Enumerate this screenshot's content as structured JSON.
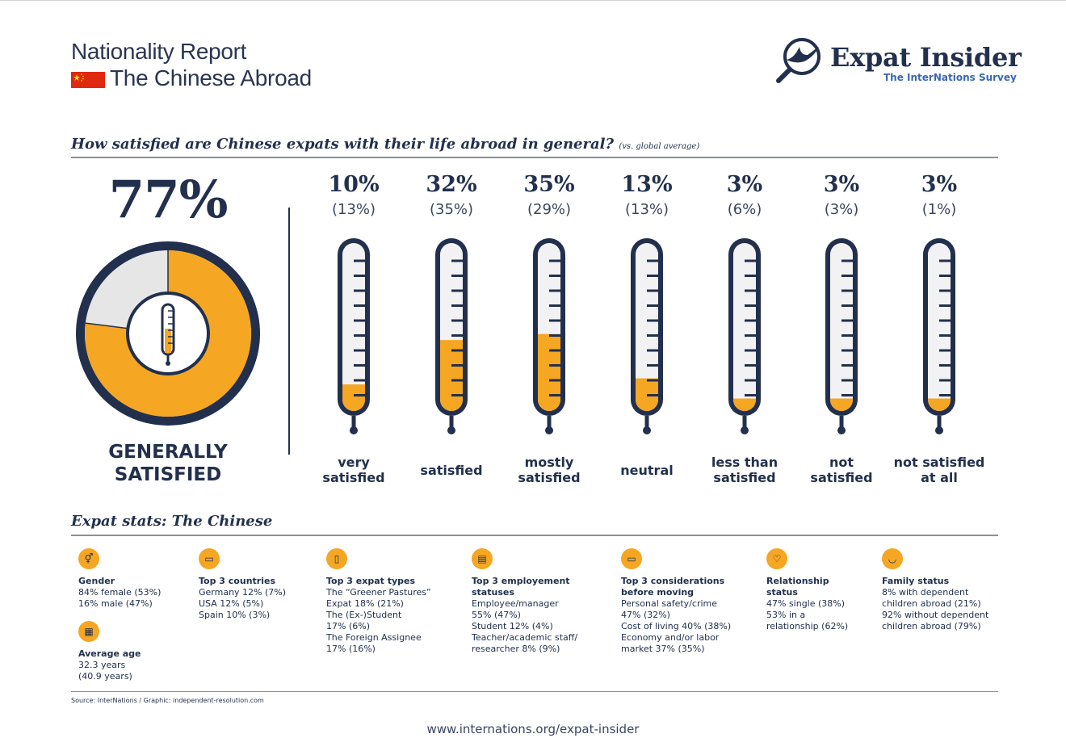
{
  "header": {
    "title_line1": "Nationality Report",
    "title_line2": "The Chinese Abroad",
    "logo_title": "Expat Insider",
    "logo_subtitle": "The InterNations Survey"
  },
  "colors": {
    "accent": "#f5a623",
    "navy": "#22304d",
    "gray": "#e6e6e6",
    "flag_red": "#de2910",
    "flag_star": "#ffde00"
  },
  "question": {
    "text": "How satisfied are Chinese expats with their life abroad in general?",
    "suffix": "(vs. global average)"
  },
  "summary": {
    "percent_label": "77%",
    "percent": 77,
    "label_line1": "GENERALLY",
    "label_line2": "SATISFIED"
  },
  "chart_data": {
    "type": "bar",
    "title": "How satisfied are Chinese expats with their life abroad in general?",
    "categories": [
      "very satisfied",
      "satisfied",
      "mostly satisfied",
      "neutral",
      "less than satisfied",
      "not satisfied",
      "not satisfied at all"
    ],
    "series": [
      {
        "name": "Chinese expats",
        "values": [
          10,
          32,
          35,
          13,
          3,
          3,
          3
        ]
      },
      {
        "name": "global average",
        "values": [
          13,
          35,
          29,
          13,
          6,
          3,
          1
        ]
      }
    ],
    "ylim": [
      0,
      100
    ],
    "items": [
      {
        "pct": "10%",
        "avg": "(13%)",
        "value": 10,
        "label1": "very",
        "label2": "satisfied"
      },
      {
        "pct": "32%",
        "avg": "(35%)",
        "value": 32,
        "label1": "satisfied",
        "label2": ""
      },
      {
        "pct": "35%",
        "avg": "(29%)",
        "value": 35,
        "label1": "mostly",
        "label2": "satisfied"
      },
      {
        "pct": "13%",
        "avg": "(13%)",
        "value": 13,
        "label1": "neutral",
        "label2": ""
      },
      {
        "pct": "3%",
        "avg": "(6%)",
        "value": 3,
        "label1": "less than",
        "label2": "satisfied"
      },
      {
        "pct": "3%",
        "avg": "(3%)",
        "value": 3,
        "label1": "not",
        "label2": "satisfied"
      },
      {
        "pct": "3%",
        "avg": "(1%)",
        "value": 3,
        "label1": "not satisfied",
        "label2": "at all"
      }
    ]
  },
  "stats": {
    "title": "Expat stats: The Chinese",
    "blocks": [
      {
        "icon": "gender-icon",
        "label": [
          "Gender"
        ],
        "lines": [
          "84% female (53%)",
          "16% male (47%)"
        ]
      },
      {
        "icon": "map-icon",
        "label": [
          "Top 3 countries"
        ],
        "lines": [
          "Germany 12% (7%)",
          "USA 12% (5%)",
          "Spain 10% (3%)"
        ]
      },
      {
        "icon": "suitcase-icon",
        "label": [
          "Top 3 expat types"
        ],
        "lines": [
          "The “Greener Pastures”",
          "Expat 18% (21%)",
          "The (Ex-)Student",
          "17% (6%)",
          "The Foreign Assignee",
          "17% (16%)"
        ]
      },
      {
        "icon": "briefcase-icon",
        "label": [
          "Top 3 employement",
          "statuses"
        ],
        "lines": [
          "Employee/manager",
          "55% (47%)",
          "Student 12% (4%)",
          "Teacher/academic staff/",
          "researcher 8% (9%)"
        ]
      },
      {
        "icon": "chat-icon",
        "label": [
          "Top 3 considerations",
          "before moving"
        ],
        "lines": [
          "Personal safety/crime",
          "47% (32%)",
          "Cost of living 40% (38%)",
          "Economy and/or labor",
          "market 37% (35%)"
        ]
      },
      {
        "icon": "heart-icon",
        "label": [
          "Relationship",
          "status"
        ],
        "lines": [
          "47% single (38%)",
          "53% in a",
          "relationship (62%)"
        ]
      },
      {
        "icon": "stroller-icon",
        "label": [
          "Family status"
        ],
        "lines": [
          "8% with dependent",
          "children abroad (21%)",
          "92% without dependent",
          "children abroad (79%)"
        ]
      },
      {
        "icon": "cake-icon",
        "label": [
          "Average age"
        ],
        "lines": [
          "32.3 years",
          "(40.9 years)"
        ]
      }
    ]
  },
  "footer": {
    "source": "Source: InterNations / Graphic: independent-resolution.com",
    "url": "www.internations.org/expat-insider"
  }
}
